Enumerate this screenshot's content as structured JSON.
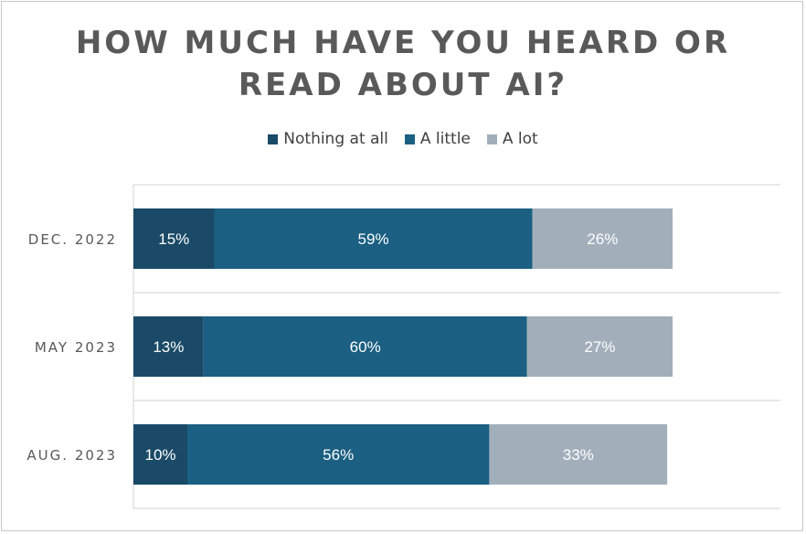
{
  "chart_data": {
    "type": "bar",
    "orientation": "horizontal",
    "stacked": true,
    "title": "HOW MUCH HAVE YOU HEARD OR READ ABOUT AI?",
    "title_lines": [
      "HOW MUCH HAVE YOU HEARD OR",
      "READ ABOUT AI?"
    ],
    "categories": [
      "DEC. 2022",
      "MAY 2023",
      "AUG. 2023"
    ],
    "series": [
      {
        "name": "Nothing at all",
        "values": [
          15,
          13,
          10
        ],
        "labels": [
          "15%",
          "13%",
          "10%"
        ],
        "color": "#1a4a67"
      },
      {
        "name": "A little",
        "values": [
          59,
          60,
          56
        ],
        "labels": [
          "59%",
          "60%",
          "56%"
        ],
        "color": "#1b5f82"
      },
      {
        "name": "A lot",
        "values": [
          26,
          27,
          33
        ],
        "labels": [
          "26%",
          "27%",
          "33%"
        ],
        "color": "#a2afbb"
      }
    ],
    "xlim": [
      0,
      120
    ],
    "legend_position": "top",
    "grid": "horizontal separators"
  }
}
